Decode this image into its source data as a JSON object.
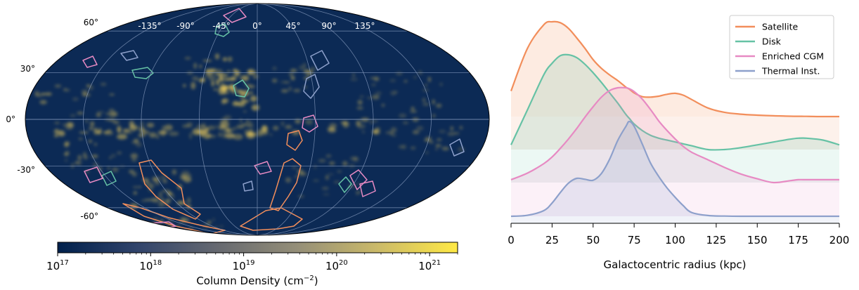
{
  "sky_map": {
    "lat_labels": [
      "60°",
      "30°",
      "0°",
      "-30°",
      "-60°"
    ],
    "lat_values": [
      60,
      30,
      0,
      -30,
      -60
    ],
    "lon_labels": [
      "-135°",
      "-90°",
      "-45°",
      "0°",
      "45°",
      "90°",
      "135°"
    ],
    "lon_values": [
      -135,
      -90,
      -45,
      0,
      45,
      90,
      135
    ],
    "background_color": "#0c2a55",
    "grid_color": "#8fa3c4",
    "cloud_color": "#e8c85a",
    "colorbar": {
      "label_text": "Column Density (cm",
      "label_exponent": "−2",
      "label_close": ")",
      "min": 1e+17,
      "max": 2e+21,
      "scale": "log",
      "tick_values": [
        1e+17,
        1e+18,
        1e+19,
        1e+20,
        1e+21
      ],
      "tick_bases": [
        "10",
        "10",
        "10",
        "10",
        "10"
      ],
      "tick_exponents": [
        "17",
        "18",
        "19",
        "20",
        "21"
      ],
      "colors": [
        "#00204c",
        "#31446b",
        "#666970",
        "#958f78",
        "#cbba69",
        "#ffe945"
      ]
    }
  },
  "chart_data": {
    "type": "area",
    "style": "ridgeline",
    "xlabel": "Galactocentric radius (kpc)",
    "ylabel": "",
    "xlim": [
      0,
      200
    ],
    "x_ticks": [
      0,
      25,
      50,
      75,
      100,
      125,
      150,
      175,
      200
    ],
    "x_tick_labels": [
      "0",
      "25",
      "50",
      "75",
      "100",
      "125",
      "150",
      "175",
      "200"
    ],
    "legend_position": "top-right",
    "x": [
      0,
      10,
      20,
      25,
      30,
      35,
      40,
      45,
      50,
      55,
      60,
      65,
      70,
      72,
      75,
      80,
      85,
      90,
      95,
      100,
      105,
      110,
      120,
      130,
      140,
      150,
      160,
      170,
      175,
      180,
      190,
      200
    ],
    "series": [
      {
        "name": "Satellite",
        "color": "#f28e5b",
        "values": [
          0.27,
          0.72,
          0.97,
          1.0,
          0.99,
          0.93,
          0.83,
          0.72,
          0.6,
          0.51,
          0.44,
          0.38,
          0.31,
          0.29,
          0.25,
          0.21,
          0.205,
          0.215,
          0.235,
          0.245,
          0.225,
          0.18,
          0.09,
          0.045,
          0.025,
          0.015,
          0.008,
          0.004,
          0.003,
          0.002,
          0.0,
          0.0
        ]
      },
      {
        "name": "Disk",
        "color": "#66c2a5",
        "values": [
          0.05,
          0.42,
          0.79,
          0.91,
          0.99,
          1.0,
          0.97,
          0.9,
          0.81,
          0.71,
          0.6,
          0.49,
          0.37,
          0.33,
          0.27,
          0.2,
          0.15,
          0.12,
          0.1,
          0.08,
          0.06,
          0.04,
          0.0,
          0.0,
          0.02,
          0.05,
          0.08,
          0.11,
          0.12,
          0.12,
          0.1,
          0.05
        ]
      },
      {
        "name": "Enriched CGM",
        "color": "#e78ac3",
        "values": [
          0.03,
          0.1,
          0.2,
          0.27,
          0.36,
          0.46,
          0.57,
          0.69,
          0.8,
          0.9,
          0.97,
          1.0,
          1.0,
          0.99,
          0.96,
          0.88,
          0.77,
          0.65,
          0.55,
          0.46,
          0.38,
          0.32,
          0.24,
          0.16,
          0.09,
          0.04,
          0.0,
          0.02,
          0.03,
          0.03,
          0.03,
          0.03
        ]
      },
      {
        "name": "Thermal Inst.",
        "color": "#8da0cb",
        "values": [
          0.0,
          0.01,
          0.06,
          0.14,
          0.25,
          0.35,
          0.4,
          0.39,
          0.38,
          0.45,
          0.6,
          0.8,
          0.95,
          1.0,
          0.95,
          0.76,
          0.56,
          0.42,
          0.3,
          0.2,
          0.11,
          0.04,
          0.008,
          0.002,
          0.0,
          0.0,
          0.0,
          0.0,
          0.0,
          0.0,
          0.0,
          0.0
        ]
      }
    ]
  }
}
